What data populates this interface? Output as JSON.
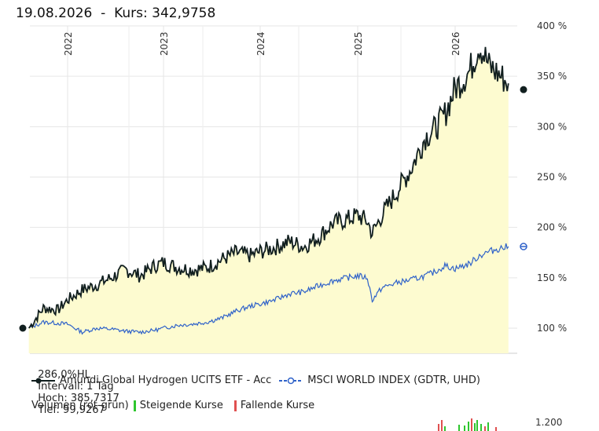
{
  "header": {
    "date": "19.08.2026",
    "separator": "-",
    "kurs_label": "Kurs:",
    "kurs_value": "342,9758"
  },
  "stats": {
    "change": "286,0%HL",
    "interval": "Intervall: 1 Tag",
    "high": "Hoch: 385,7317",
    "low": "Tief: 99,9267"
  },
  "legend": {
    "series1": "Amundi Global Hydrogen UCITS ETF - Acc",
    "series2": "MSCI WORLD INDEX (GDTR, UHD)"
  },
  "volume_legend": {
    "title": "Volumen (rot-grün)",
    "rising": "Steigende Kurse",
    "falling": "Fallende Kurse",
    "tick": "1.200"
  },
  "colors": {
    "series1": "#111f1f",
    "series2": "#2f62c9",
    "fill": "#fdfbd0",
    "rising": "#2ec62e",
    "falling": "#e05050"
  },
  "chart_data": {
    "type": "area",
    "x_unit": "year",
    "y_unit": "%",
    "ylim": [
      100,
      400
    ],
    "yticks": [
      "100 %",
      "150 %",
      "200 %",
      "250 %",
      "300 %",
      "350 %",
      "400 %"
    ],
    "xticks": [
      "2022",
      "2023",
      "2024",
      "2025",
      "2026"
    ],
    "series": [
      {
        "name": "Amundi Global Hydrogen UCITS ETF - Acc",
        "x": [
          2021.6,
          2021.75,
          2021.9,
          2022.0,
          2022.15,
          2022.3,
          2022.45,
          2022.6,
          2022.75,
          2022.9,
          2023.0,
          2023.15,
          2023.3,
          2023.45,
          2023.6,
          2023.75,
          2023.9,
          2024.0,
          2024.15,
          2024.3,
          2024.45,
          2024.6,
          2024.75,
          2024.9,
          2025.0,
          2025.1,
          2025.15,
          2025.25,
          2025.4,
          2025.55,
          2025.7,
          2025.8,
          2025.9,
          2026.0,
          2026.15,
          2026.25,
          2026.35,
          2026.45,
          2026.55
        ],
        "values": [
          100,
          120,
          118,
          128,
          138,
          143,
          150,
          158,
          152,
          162,
          165,
          160,
          158,
          160,
          168,
          175,
          172,
          176,
          180,
          186,
          181,
          190,
          204,
          208,
          212,
          206,
          194,
          212,
          235,
          258,
          290,
          298,
          312,
          338,
          355,
          382,
          360,
          352,
          342.98
        ]
      },
      {
        "name": "MSCI WORLD INDEX (GDTR, UHD)",
        "x": [
          2021.6,
          2021.75,
          2021.9,
          2022.0,
          2022.15,
          2022.3,
          2022.45,
          2022.6,
          2022.75,
          2022.9,
          2023.0,
          2023.15,
          2023.3,
          2023.45,
          2023.6,
          2023.75,
          2023.9,
          2024.0,
          2024.15,
          2024.3,
          2024.45,
          2024.6,
          2024.75,
          2024.9,
          2025.0,
          2025.1,
          2025.15,
          2025.25,
          2025.4,
          2025.55,
          2025.7,
          2025.8,
          2025.9,
          2026.0,
          2026.15,
          2026.25,
          2026.35,
          2026.45,
          2026.55
        ],
        "values": [
          100,
          106,
          105,
          104,
          96,
          100,
          99,
          97,
          96,
          98,
          100,
          103,
          104,
          106,
          110,
          117,
          122,
          124,
          128,
          134,
          136,
          142,
          147,
          150,
          152,
          150,
          128,
          140,
          145,
          148,
          152,
          156,
          162,
          159,
          164,
          172,
          176,
          179,
          181
        ]
      }
    ],
    "grid": true,
    "legend_position": "bottom"
  }
}
